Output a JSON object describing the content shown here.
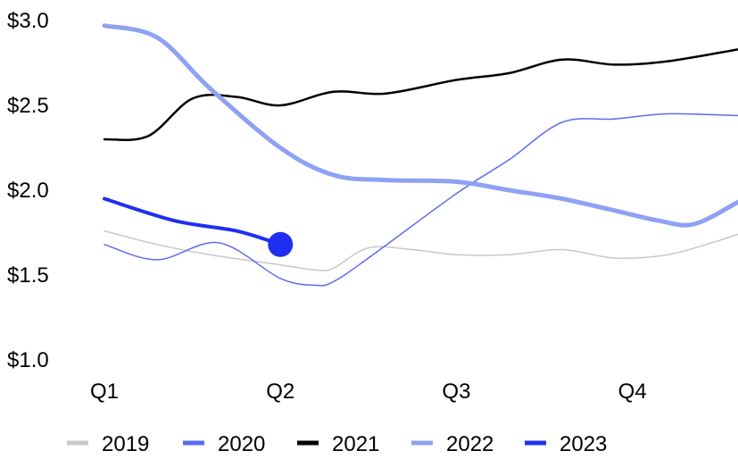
{
  "chart_data": {
    "type": "line",
    "categories": [
      "Q1",
      "Q2",
      "Q3",
      "Q4"
    ],
    "y_ticks": [
      "$1.0",
      "$1.5",
      "$2.0",
      "$2.5",
      "$3.0"
    ],
    "ylim": [
      1.0,
      3.0
    ],
    "xlim": [
      0,
      3.6
    ],
    "grid": false,
    "legend_placement": "bottom",
    "series": [
      {
        "name": "2019",
        "color": "#c8c8c8",
        "width": 1.5,
        "points": [
          [
            0,
            1.76
          ],
          [
            0.3,
            1.68
          ],
          [
            0.6,
            1.62
          ],
          [
            1.0,
            1.56
          ],
          [
            1.2,
            1.53
          ],
          [
            1.3,
            1.54
          ],
          [
            1.5,
            1.66
          ],
          [
            1.75,
            1.65
          ],
          [
            2.0,
            1.62
          ],
          [
            2.3,
            1.62
          ],
          [
            2.6,
            1.65
          ],
          [
            2.9,
            1.6
          ],
          [
            3.2,
            1.62
          ],
          [
            3.45,
            1.69
          ],
          [
            3.6,
            1.74
          ]
        ]
      },
      {
        "name": "2020",
        "color": "#5b6cf0",
        "width": 1.5,
        "points": [
          [
            0,
            1.68
          ],
          [
            0.3,
            1.59
          ],
          [
            0.65,
            1.69
          ],
          [
            1.0,
            1.48
          ],
          [
            1.2,
            1.44
          ],
          [
            1.3,
            1.46
          ],
          [
            1.5,
            1.6
          ],
          [
            2.0,
            1.98
          ],
          [
            2.3,
            2.18
          ],
          [
            2.6,
            2.4
          ],
          [
            2.9,
            2.42
          ],
          [
            3.2,
            2.45
          ],
          [
            3.6,
            2.44
          ]
        ]
      },
      {
        "name": "2021",
        "color": "#000000",
        "width": 2.5,
        "points": [
          [
            0,
            2.3
          ],
          [
            0.25,
            2.32
          ],
          [
            0.5,
            2.54
          ],
          [
            0.75,
            2.55
          ],
          [
            1.0,
            2.5
          ],
          [
            1.3,
            2.58
          ],
          [
            1.6,
            2.57
          ],
          [
            2.0,
            2.65
          ],
          [
            2.3,
            2.69
          ],
          [
            2.6,
            2.77
          ],
          [
            2.9,
            2.74
          ],
          [
            3.2,
            2.76
          ],
          [
            3.6,
            2.83
          ]
        ]
      },
      {
        "name": "2022",
        "color": "#8fa1f2",
        "width": 5,
        "points": [
          [
            0,
            2.97
          ],
          [
            0.3,
            2.9
          ],
          [
            0.6,
            2.6
          ],
          [
            1.0,
            2.25
          ],
          [
            1.3,
            2.09
          ],
          [
            1.6,
            2.06
          ],
          [
            2.0,
            2.05
          ],
          [
            2.3,
            2.0
          ],
          [
            2.6,
            1.95
          ],
          [
            2.9,
            1.88
          ],
          [
            3.15,
            1.82
          ],
          [
            3.35,
            1.8
          ],
          [
            3.6,
            1.93
          ]
        ]
      },
      {
        "name": "2023",
        "color": "#1f2ff0",
        "width": 4,
        "points": [
          [
            0,
            1.95
          ],
          [
            0.4,
            1.82
          ],
          [
            0.75,
            1.76
          ],
          [
            1.0,
            1.68
          ]
        ],
        "end_marker": true
      }
    ]
  }
}
